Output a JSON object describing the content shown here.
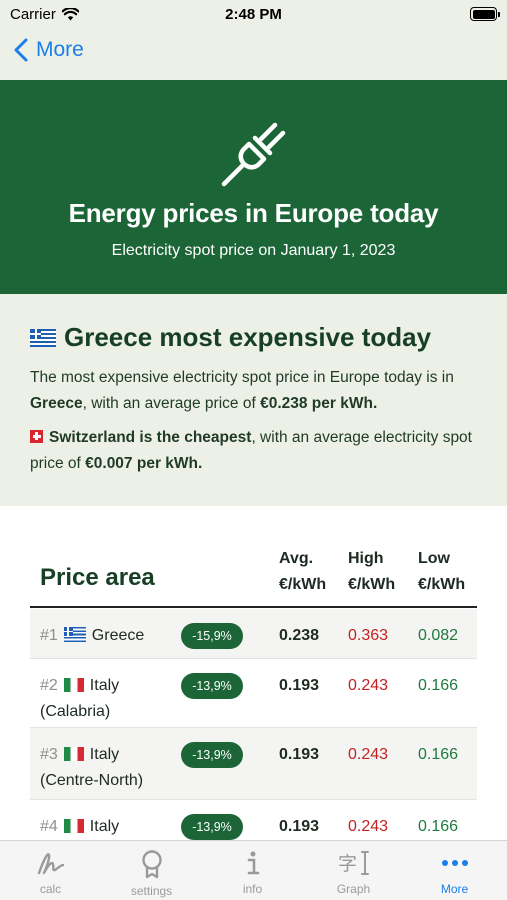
{
  "status_bar": {
    "carrier": "Carrier",
    "time": "2:48 PM"
  },
  "nav": {
    "back_label": "More"
  },
  "hero": {
    "title": "Energy prices in Europe today",
    "subtitle": "Electricity spot price on January 1, 2023"
  },
  "summary": {
    "headline": "Greece most expensive today",
    "p1_text1": "The most expensive electricity spot price in Europe today is in ",
    "p1_country": "Greece",
    "p1_text2": ", with an average price of ",
    "p1_price": "€0.238 per kWh.",
    "p2_cheapest": "Switzerland is the cheapest",
    "p2_text1": ", with an average electricity spot price of ",
    "p2_price": "€0.007 per kWh."
  },
  "table": {
    "title": "Price area",
    "columns": {
      "avg": [
        "Avg.",
        "€/kWh"
      ],
      "high": [
        "High",
        "€/kWh"
      ],
      "low": [
        "Low",
        "€/kWh"
      ]
    },
    "rows": [
      {
        "rank": "#1",
        "flag": "gr",
        "area_line1": "Greece",
        "area_line2": "",
        "change": "-15,9%",
        "avg": "0.238",
        "high": "0.363",
        "low": "0.082"
      },
      {
        "rank": "#2",
        "flag": "it",
        "area_line1": "Italy",
        "area_line2": "(Calabria)",
        "change": "-13,9%",
        "avg": "0.193",
        "high": "0.243",
        "low": "0.166"
      },
      {
        "rank": "#3",
        "flag": "it",
        "area_line1": "Italy",
        "area_line2": "(Centre-North)",
        "change": "-13,9%",
        "avg": "0.193",
        "high": "0.243",
        "low": "0.166"
      },
      {
        "rank": "#4",
        "flag": "it",
        "area_line1": "Italy",
        "area_line2": "",
        "change": "-13,9%",
        "avg": "0.193",
        "high": "0.243",
        "low": "0.166"
      }
    ]
  },
  "tabbar": {
    "tabs": [
      {
        "label": "calc",
        "icon": "signature-icon"
      },
      {
        "label": "settings",
        "icon": "ribbon-icon"
      },
      {
        "label": "info",
        "icon": "info-icon"
      },
      {
        "label": "Graph",
        "icon": "text-cursor-icon"
      },
      {
        "label": "More",
        "icon": "ellipsis-icon"
      }
    ],
    "active_index": 4
  },
  "colors": {
    "brand_green": "#1b6536",
    "accent_blue": "#1a7fe8",
    "high_red": "#c42222",
    "low_green": "#1e7a3e"
  }
}
